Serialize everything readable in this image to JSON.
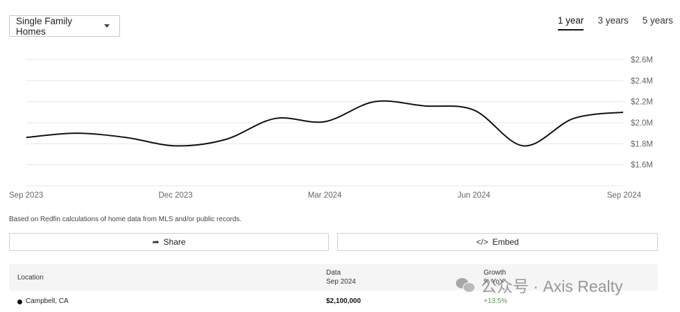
{
  "filter": {
    "label": "Single Family Homes"
  },
  "range_tabs": [
    {
      "label": "1 year",
      "active": true
    },
    {
      "label": "3 years",
      "active": false
    },
    {
      "label": "5 years",
      "active": false
    }
  ],
  "chart_data": {
    "type": "line",
    "title": "",
    "xlabel": "",
    "ylabel": "",
    "y_unit": "USD (millions)",
    "x_tick_labels": [
      "Sep 2023",
      "Dec 2023",
      "Mar 2024",
      "Jun 2024",
      "Sep 2024"
    ],
    "y_tick_labels": [
      "$1.6M",
      "$1.8M",
      "$2.0M",
      "$2.2M",
      "$2.4M",
      "$2.6M"
    ],
    "y_ticks": [
      1.6,
      1.8,
      2.0,
      2.2,
      2.4,
      2.6
    ],
    "ylim": [
      1.4,
      2.6
    ],
    "grid": true,
    "axis_position": "right",
    "series": [
      {
        "values": [
          {
            "month": "2023-09",
            "value": 1.86
          },
          {
            "month": "2023-10",
            "value": 1.9
          },
          {
            "month": "2023-11",
            "value": 1.86
          },
          {
            "month": "2023-12",
            "value": 1.78
          },
          {
            "month": "2024-01",
            "value": 1.84
          },
          {
            "month": "2024-02",
            "value": 2.04
          },
          {
            "month": "2024-03",
            "value": 2.01
          },
          {
            "month": "2024-04",
            "value": 2.2
          },
          {
            "month": "2024-05",
            "value": 2.16
          },
          {
            "month": "2024-06",
            "value": 2.12
          },
          {
            "month": "2024-07",
            "value": 1.78
          },
          {
            "month": "2024-08",
            "value": 2.04
          },
          {
            "month": "2024-09",
            "value": 2.1
          }
        ]
      }
    ]
  },
  "footnote": "Based on Redfin calculations of home data from MLS and/or public records.",
  "buttons": {
    "share": "Share",
    "embed": "Embed"
  },
  "table": {
    "headers": {
      "location": "Location",
      "data": "Data",
      "data_sub": "Sep 2024",
      "growth": "Growth",
      "growth_sub": "% YoY"
    },
    "rows": [
      {
        "location": "Campbell, CA",
        "value": "$2,100,000",
        "growth": "+13.5%",
        "color": "#111111"
      }
    ]
  },
  "watermark": {
    "text": "公众号 · Axis Realty"
  }
}
